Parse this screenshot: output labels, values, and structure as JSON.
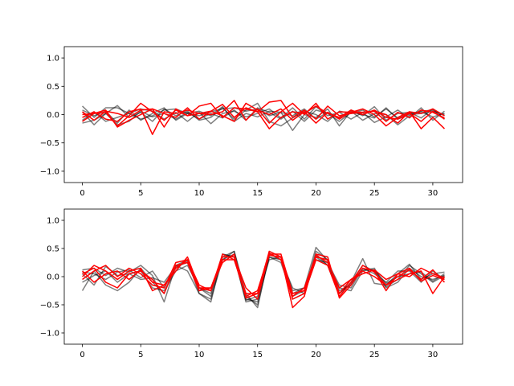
{
  "chart_data": [
    {
      "type": "line",
      "title": "",
      "xlabel": "",
      "ylabel": "",
      "xlim": [
        -1.55,
        32.55
      ],
      "ylim": [
        -1.2,
        1.2
      ],
      "xticks": [
        0,
        5,
        10,
        15,
        20,
        25,
        30
      ],
      "yticks": [
        -1.0,
        -0.5,
        0.0,
        0.5,
        1.0
      ],
      "xtick_labels": [
        "0",
        "5",
        "10",
        "15",
        "20",
        "25",
        "30"
      ],
      "ytick_labels": [
        "−1.0",
        "−0.5",
        "0.0",
        "0.5",
        "1.0"
      ],
      "grid": false,
      "legend": "none",
      "colors": {
        "gray": "#000000",
        "red": "#ff0000"
      },
      "series": [
        {
          "color": "gray",
          "values": [
            0.15,
            -0.05,
            0.12,
            0.12,
            0.02,
            -0.08,
            -0.02,
            0.08,
            0.1,
            0.02,
            -0.02,
            0.05,
            0.1,
            0.12,
            0.06,
            0.1,
            -0.02,
            0.04,
            -0.28,
            0.0,
            -0.05,
            0.1,
            -0.2,
            0.06,
            -0.1,
            0.02,
            0.0,
            -0.18,
            -0.02,
            0.06,
            0.08,
            -0.02
          ]
        },
        {
          "color": "gray",
          "values": [
            0.05,
            -0.18,
            0.02,
            0.16,
            -0.05,
            0.04,
            -0.12,
            0.1,
            -0.02,
            0.06,
            -0.1,
            -0.05,
            0.12,
            -0.08,
            0.08,
            0.2,
            -0.12,
            -0.2,
            -0.06,
            0.06,
            0.0,
            -0.12,
            0.06,
            0.02,
            0.08,
            -0.04,
            0.1,
            -0.06,
            0.02,
            0.05,
            -0.04,
            0.02
          ]
        },
        {
          "color": "gray",
          "values": [
            -0.1,
            0.05,
            -0.12,
            -0.05,
            0.02,
            0.1,
            0.06,
            -0.08,
            0.04,
            -0.12,
            0.04,
            -0.16,
            0.02,
            0.06,
            -0.04,
            0.02,
            0.1,
            -0.06,
            0.12,
            -0.08,
            0.14,
            -0.02,
            0.04,
            -0.08,
            0.04,
            -0.14,
            -0.04,
            0.08,
            -0.06,
            0.12,
            -0.1,
            0.06
          ]
        },
        {
          "color": "gray",
          "values": [
            0.08,
            -0.02,
            0.06,
            -0.15,
            0.08,
            -0.1,
            0.02,
            0.12,
            -0.1,
            0.02,
            0.06,
            -0.02,
            0.14,
            -0.12,
            0.02,
            -0.04,
            0.06,
            0.04,
            -0.02,
            0.1,
            -0.08,
            0.04,
            -0.06,
            0.08,
            -0.02,
            0.14,
            -0.1,
            0.02,
            0.04,
            -0.06,
            0.1,
            -0.08
          ]
        },
        {
          "color": "gray",
          "values": [
            -0.15,
            -0.1,
            0.02,
            -0.18,
            -0.12,
            0.06,
            -0.04,
            0.02,
            -0.08,
            0.04,
            -0.08,
            0.02,
            -0.06,
            0.08,
            -0.1,
            0.12,
            0.04,
            -0.08,
            0.06,
            -0.12,
            0.08,
            0.02,
            -0.12,
            0.04,
            0.0,
            -0.06,
            0.12,
            -0.08,
            0.0,
            0.02,
            0.06,
            0.0
          ]
        },
        {
          "color": "red",
          "values": [
            0.0,
            0.02,
            0.04,
            -0.2,
            -0.02,
            0.2,
            0.05,
            -0.1,
            0.08,
            -0.02,
            0.15,
            0.2,
            -0.05,
            0.12,
            0.1,
            0.05,
            0.22,
            0.25,
            -0.05,
            0.08,
            -0.08,
            0.15,
            -0.02,
            0.02,
            0.04,
            0.06,
            0.0,
            -0.15,
            0.05,
            0.02,
            0.1,
            -0.02
          ]
        },
        {
          "color": "red",
          "values": [
            -0.05,
            0.05,
            -0.08,
            -0.12,
            0.05,
            0.1,
            -0.35,
            0.05,
            0.02,
            0.08,
            0.02,
            0.06,
            0.18,
            -0.05,
            0.12,
            0.05,
            -0.25,
            -0.05,
            0.05,
            0.02,
            0.15,
            0.02,
            -0.05,
            0.08,
            0.0,
            0.08,
            -0.05,
            -0.08,
            0.02,
            -0.12,
            0.06,
            -0.08
          ]
        },
        {
          "color": "red",
          "values": [
            -0.12,
            0.02,
            0.08,
            -0.22,
            -0.1,
            0.0,
            0.1,
            -0.22,
            0.1,
            -0.02,
            0.02,
            0.0,
            0.05,
            0.25,
            -0.1,
            0.1,
            -0.15,
            0.05,
            0.2,
            0.0,
            0.2,
            -0.08,
            0.05,
            0.04,
            0.1,
            0.0,
            -0.2,
            -0.05,
            0.05,
            -0.25,
            -0.05,
            -0.25
          ]
        },
        {
          "color": "red",
          "values": [
            0.05,
            -0.1,
            0.06,
            0.02,
            -0.05,
            0.08,
            0.1,
            0.02,
            -0.05,
            0.12,
            -0.08,
            0.06,
            -0.02,
            -0.12,
            0.2,
            0.08,
            0.0,
            0.1,
            -0.1,
            0.05,
            -0.15,
            0.04,
            -0.08,
            0.05,
            0.04,
            0.06,
            -0.12,
            0.04,
            -0.05,
            0.08,
            0.04,
            -0.06
          ]
        }
      ]
    },
    {
      "type": "line",
      "title": "",
      "xlabel": "",
      "ylabel": "",
      "xlim": [
        -1.55,
        32.55
      ],
      "ylim": [
        -1.2,
        1.2
      ],
      "xticks": [
        0,
        5,
        10,
        15,
        20,
        25,
        30
      ],
      "yticks": [
        -1.0,
        -0.5,
        0.0,
        0.5,
        1.0
      ],
      "xtick_labels": [
        "0",
        "5",
        "10",
        "15",
        "20",
        "25",
        "30"
      ],
      "ytick_labels": [
        "−1.0",
        "−0.5",
        "0.0",
        "0.5",
        "1.0"
      ],
      "grid": false,
      "legend": "none",
      "colors": {
        "gray": "#000000",
        "red": "#ff0000"
      },
      "series": [
        {
          "color": "gray",
          "values": [
            0.12,
            0.15,
            0.02,
            0.15,
            0.08,
            0.2,
            0.02,
            -0.45,
            0.2,
            0.3,
            -0.25,
            -0.2,
            0.3,
            0.45,
            -0.3,
            -0.55,
            0.4,
            0.3,
            -0.3,
            -0.2,
            0.52,
            0.28,
            -0.3,
            -0.1,
            0.32,
            -0.12,
            -0.15,
            0.05,
            0.22,
            -0.05,
            0.05,
            0.08
          ]
        },
        {
          "color": "gray",
          "values": [
            -0.25,
            0.1,
            -0.15,
            -0.25,
            -0.1,
            0.15,
            -0.1,
            -0.3,
            0.2,
            0.1,
            -0.3,
            -0.45,
            0.4,
            0.35,
            -0.45,
            -0.4,
            0.35,
            0.25,
            -0.35,
            -0.25,
            0.4,
            0.2,
            -0.2,
            -0.25,
            0.1,
            0.15,
            -0.2,
            -0.1,
            0.15,
            0.0,
            -0.05,
            0.02
          ]
        },
        {
          "color": "gray",
          "values": [
            0.05,
            -0.15,
            0.18,
            0.02,
            0.05,
            -0.05,
            -0.02,
            -0.1,
            0.18,
            0.25,
            -0.2,
            -0.35,
            0.35,
            0.45,
            -0.4,
            -0.45,
            0.45,
            0.35,
            -0.4,
            -0.3,
            0.45,
            0.3,
            -0.25,
            -0.15,
            0.2,
            0.1,
            -0.18,
            -0.05,
            0.2,
            0.05,
            -0.1,
            0.02
          ]
        },
        {
          "color": "gray",
          "values": [
            0.08,
            0.05,
            -0.05,
            0.08,
            0.12,
            -0.02,
            0.1,
            -0.2,
            0.15,
            0.28,
            -0.3,
            -0.4,
            0.3,
            0.4,
            -0.35,
            -0.5,
            0.35,
            0.3,
            -0.2,
            -0.3,
            0.3,
            0.25,
            -0.15,
            -0.2,
            0.15,
            0.05,
            -0.1,
            0.1,
            0.1,
            -0.1,
            0.1,
            -0.05
          ]
        },
        {
          "color": "gray",
          "values": [
            -0.1,
            0.02,
            0.1,
            -0.1,
            0.05,
            0.1,
            -0.2,
            -0.25,
            0.1,
            0.2,
            -0.2,
            -0.3,
            0.4,
            0.35,
            -0.42,
            -0.35,
            0.3,
            0.35,
            -0.25,
            -0.2,
            0.35,
            0.2,
            -0.3,
            -0.12,
            0.12,
            0.12,
            -0.12,
            0.0,
            0.05,
            0.08,
            -0.08,
            0.05
          ]
        },
        {
          "color": "red",
          "values": [
            0.0,
            0.2,
            0.1,
            -0.05,
            0.1,
            0.15,
            -0.25,
            -0.15,
            0.1,
            0.35,
            -0.2,
            -0.2,
            0.25,
            0.4,
            -0.38,
            -0.3,
            0.45,
            0.35,
            -0.55,
            -0.35,
            0.4,
            0.35,
            -0.38,
            -0.15,
            0.15,
            0.1,
            -0.25,
            0.05,
            0.15,
            -0.08,
            0.02,
            -0.05
          ]
        },
        {
          "color": "red",
          "values": [
            0.05,
            0.15,
            -0.1,
            -0.2,
            0.05,
            0.1,
            -0.05,
            -0.3,
            0.2,
            0.25,
            -0.25,
            -0.2,
            0.35,
            0.35,
            -0.2,
            -0.4,
            0.4,
            0.4,
            -0.3,
            -0.25,
            0.35,
            0.3,
            -0.3,
            -0.05,
            0.1,
            0.0,
            -0.15,
            -0.05,
            0.05,
            0.1,
            -0.3,
            0.0
          ]
        },
        {
          "color": "red",
          "values": [
            -0.05,
            0.1,
            0.2,
            0.0,
            0.15,
            0.05,
            -0.15,
            -0.2,
            0.25,
            0.3,
            -0.2,
            -0.25,
            0.4,
            0.3,
            -0.35,
            -0.25,
            0.42,
            0.3,
            -0.4,
            -0.3,
            0.3,
            0.2,
            -0.35,
            -0.1,
            0.2,
            0.08,
            -0.15,
            0.0,
            0.12,
            -0.05,
            0.12,
            -0.1
          ]
        },
        {
          "color": "red",
          "values": [
            0.1,
            -0.1,
            0.05,
            0.1,
            -0.05,
            0.12,
            -0.1,
            -0.15,
            0.15,
            0.3,
            -0.15,
            -0.25,
            0.3,
            0.3,
            -0.3,
            -0.3,
            0.38,
            0.35,
            -0.35,
            -0.2,
            0.38,
            0.25,
            -0.2,
            -0.05,
            0.05,
            0.12,
            -0.05,
            0.05,
            0.0,
            0.15,
            0.05,
            -0.02
          ]
        }
      ]
    }
  ]
}
